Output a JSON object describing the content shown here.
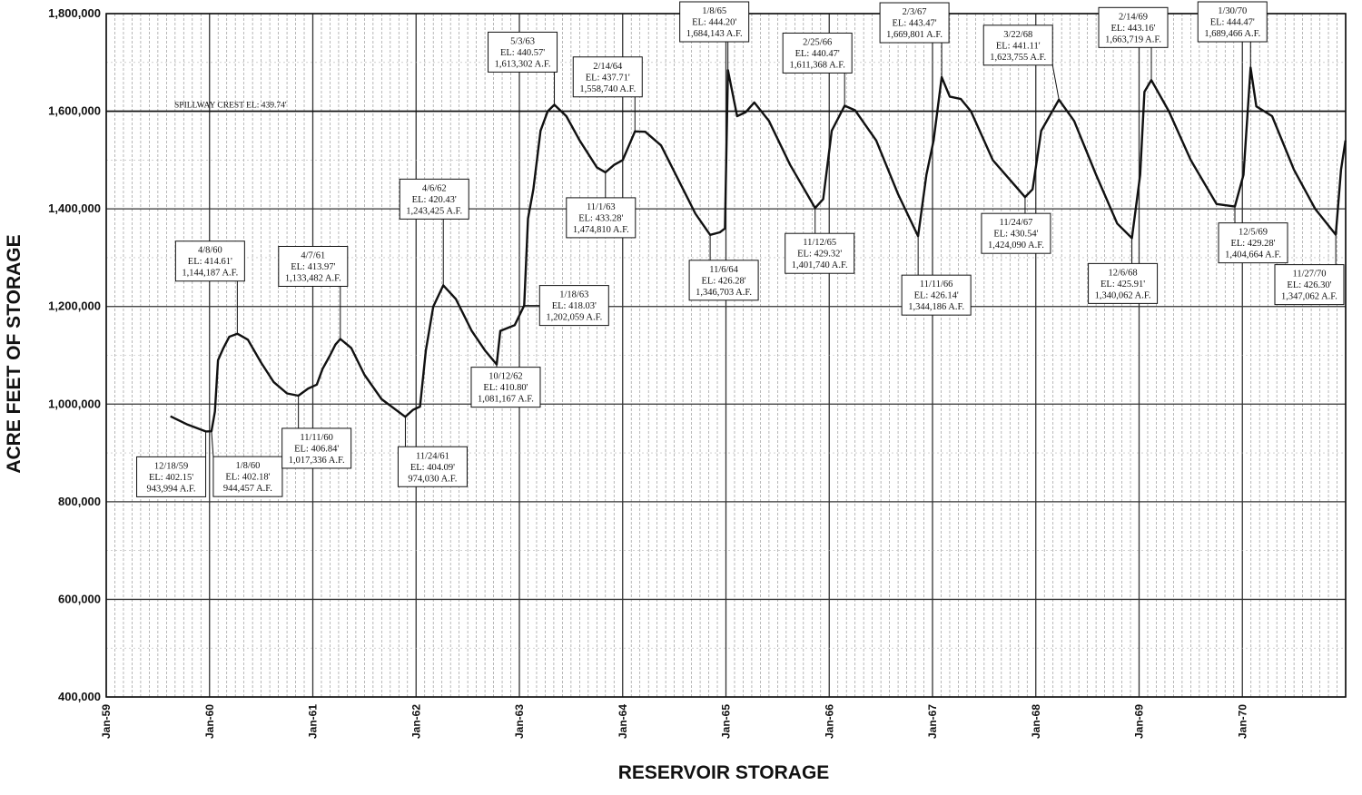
{
  "chart_data": {
    "type": "line",
    "xlabel": "RESERVOIR STORAGE",
    "ylabel": "ACRE FEET OF STORAGE",
    "ylim": [
      400000,
      1800000
    ],
    "yticks": [
      "400,000",
      "600,000",
      "800,000",
      "1,000,000",
      "1,200,000",
      "1,400,000",
      "1,600,000",
      "1,800,000"
    ],
    "xlim": [
      "1959-01",
      "1970-12"
    ],
    "xticks": [
      "Jan-59",
      "Jan-60",
      "Jan-61",
      "Jan-62",
      "Jan-63",
      "Jan-64",
      "Jan-65",
      "Jan-66",
      "Jan-67",
      "Jan-68",
      "Jan-69",
      "Jan-70"
    ],
    "grid": true,
    "reference_line": {
      "label": "SPILLWAY CREST EL: 439.74'",
      "value": 1600000
    },
    "series": [
      {
        "points": [
          [
            "1959-08-15",
            975000
          ],
          [
            "1959-10-15",
            958000
          ],
          [
            "1959-12-18",
            943994
          ],
          [
            "1960-01-08",
            944457
          ],
          [
            "1960-01-20",
            985000
          ],
          [
            "1960-01-31",
            1090000
          ],
          [
            "1960-02-20",
            1115000
          ],
          [
            "1960-03-10",
            1138000
          ],
          [
            "1960-04-08",
            1144187
          ],
          [
            "1960-05-15",
            1132000
          ],
          [
            "1960-07-01",
            1085000
          ],
          [
            "1960-08-15",
            1045000
          ],
          [
            "1960-10-01",
            1022000
          ],
          [
            "1960-11-11",
            1017336
          ],
          [
            "1960-12-15",
            1032000
          ],
          [
            "1961-01-15",
            1040000
          ],
          [
            "1961-02-05",
            1072000
          ],
          [
            "1961-03-01",
            1100000
          ],
          [
            "1961-03-20",
            1122000
          ],
          [
            "1961-04-07",
            1133482
          ],
          [
            "1961-05-15",
            1115000
          ],
          [
            "1961-07-01",
            1060000
          ],
          [
            "1961-09-01",
            1010000
          ],
          [
            "1961-11-24",
            974030
          ],
          [
            "1961-12-20",
            988000
          ],
          [
            "1962-01-15",
            995000
          ],
          [
            "1962-02-05",
            1110000
          ],
          [
            "1962-03-01",
            1200000
          ],
          [
            "1962-04-06",
            1243425
          ],
          [
            "1962-05-20",
            1215000
          ],
          [
            "1962-07-15",
            1150000
          ],
          [
            "1962-09-01",
            1110000
          ],
          [
            "1962-10-12",
            1081167
          ],
          [
            "1962-10-25",
            1150000
          ],
          [
            "1962-12-15",
            1162000
          ],
          [
            "1963-01-18",
            1202059
          ],
          [
            "1963-02-01",
            1380000
          ],
          [
            "1963-02-20",
            1440000
          ],
          [
            "1963-03-15",
            1560000
          ],
          [
            "1963-04-10",
            1600000
          ],
          [
            "1963-05-03",
            1613302
          ],
          [
            "1963-06-15",
            1590000
          ],
          [
            "1963-08-01",
            1540000
          ],
          [
            "1963-10-01",
            1485000
          ],
          [
            "1963-11-01",
            1474810
          ],
          [
            "1963-12-01",
            1490000
          ],
          [
            "1964-01-01",
            1500000
          ],
          [
            "1964-02-14",
            1558740
          ],
          [
            "1964-03-20",
            1558000
          ],
          [
            "1964-05-15",
            1530000
          ],
          [
            "1964-07-15",
            1460000
          ],
          [
            "1964-09-15",
            1390000
          ],
          [
            "1964-11-06",
            1346703
          ],
          [
            "1964-12-10",
            1352000
          ],
          [
            "1964-12-28",
            1360000
          ],
          [
            "1965-01-08",
            1684143
          ],
          [
            "1965-02-10",
            1590000
          ],
          [
            "1965-03-10",
            1598000
          ],
          [
            "1965-04-10",
            1618000
          ],
          [
            "1965-06-01",
            1580000
          ],
          [
            "1965-08-15",
            1490000
          ],
          [
            "1965-11-12",
            1401740
          ],
          [
            "1965-12-10",
            1420000
          ],
          [
            "1966-01-10",
            1560000
          ],
          [
            "1966-02-25",
            1611368
          ],
          [
            "1966-04-01",
            1602000
          ],
          [
            "1966-06-15",
            1540000
          ],
          [
            "1966-09-01",
            1430000
          ],
          [
            "1966-11-11",
            1344186
          ],
          [
            "1966-12-10",
            1470000
          ],
          [
            "1967-01-05",
            1540000
          ],
          [
            "1967-02-03",
            1669801
          ],
          [
            "1967-03-01",
            1630000
          ],
          [
            "1967-04-10",
            1625000
          ],
          [
            "1967-05-15",
            1600000
          ],
          [
            "1967-08-01",
            1500000
          ],
          [
            "1967-11-24",
            1424090
          ],
          [
            "1967-12-20",
            1440000
          ],
          [
            "1968-01-20",
            1560000
          ],
          [
            "1968-03-22",
            1623755
          ],
          [
            "1968-05-15",
            1580000
          ],
          [
            "1968-08-01",
            1470000
          ],
          [
            "1968-10-15",
            1370000
          ],
          [
            "1968-12-06",
            1340062
          ],
          [
            "1969-01-05",
            1470000
          ],
          [
            "1969-01-20",
            1640000
          ],
          [
            "1969-02-14",
            1663719
          ],
          [
            "1969-04-15",
            1600000
          ],
          [
            "1969-07-01",
            1500000
          ],
          [
            "1969-10-01",
            1410000
          ],
          [
            "1969-12-05",
            1404664
          ],
          [
            "1970-01-05",
            1470000
          ],
          [
            "1970-01-30",
            1689466
          ],
          [
            "1970-02-20",
            1610000
          ],
          [
            "1970-04-15",
            1590000
          ],
          [
            "1970-07-01",
            1480000
          ],
          [
            "1970-09-15",
            1400000
          ],
          [
            "1970-11-27",
            1347062
          ],
          [
            "1970-12-15",
            1480000
          ],
          [
            "1970-12-31",
            1540000
          ]
        ]
      }
    ],
    "annotations": [
      {
        "lines": [
          "12/18/59",
          "EL: 402.15'",
          "943,994 A.F."
        ],
        "date": "1959-12-18",
        "value": 943994
      },
      {
        "lines": [
          "1/8/60",
          "EL: 402.18'",
          "944,457 A.F."
        ],
        "date": "1960-01-08",
        "value": 944457
      },
      {
        "lines": [
          "4/8/60",
          "EL: 414.61'",
          "1,144,187 A.F."
        ],
        "date": "1960-04-08",
        "value": 1144187
      },
      {
        "lines": [
          "11/11/60",
          "EL: 406.84'",
          "1,017,336 A.F."
        ],
        "date": "1960-11-11",
        "value": 1017336
      },
      {
        "lines": [
          "4/7/61",
          "EL: 413.97'",
          "1,133,482 A.F."
        ],
        "date": "1961-04-07",
        "value": 1133482
      },
      {
        "lines": [
          "11/24/61",
          "EL: 404.09'",
          "974,030 A.F."
        ],
        "date": "1961-11-24",
        "value": 974030
      },
      {
        "lines": [
          "4/6/62",
          "EL: 420.43'",
          "1,243,425 A.F."
        ],
        "date": "1962-04-06",
        "value": 1243425
      },
      {
        "lines": [
          "10/12/62",
          "EL: 410.80'",
          "1,081,167 A.F."
        ],
        "date": "1962-10-12",
        "value": 1081167
      },
      {
        "lines": [
          "1/18/63",
          "EL: 418.03'",
          "1,202,059 A.F."
        ],
        "date": "1963-01-18",
        "value": 1202059
      },
      {
        "lines": [
          "5/3/63",
          "EL: 440.57'",
          "1,613,302 A.F."
        ],
        "date": "1963-05-03",
        "value": 1613302
      },
      {
        "lines": [
          "11/1/63",
          "EL: 433.28'",
          "1,474,810 A.F."
        ],
        "date": "1963-11-01",
        "value": 1474810
      },
      {
        "lines": [
          "2/14/64",
          "EL: 437.71'",
          "1,558,740 A.F."
        ],
        "date": "1964-02-14",
        "value": 1558740
      },
      {
        "lines": [
          "11/6/64",
          "EL: 426.28'",
          "1,346,703 A.F."
        ],
        "date": "1964-11-06",
        "value": 1346703
      },
      {
        "lines": [
          "1/8/65",
          "EL: 444.20'",
          "1,684,143 A.F."
        ],
        "date": "1965-01-08",
        "value": 1684143
      },
      {
        "lines": [
          "11/12/65",
          "EL: 429.32'",
          "1,401,740 A.F."
        ],
        "date": "1965-11-12",
        "value": 1401740
      },
      {
        "lines": [
          "2/25/66",
          "EL: 440.47'",
          "1,611,368 A.F."
        ],
        "date": "1966-02-25",
        "value": 1611368
      },
      {
        "lines": [
          "11/11/66",
          "EL: 426.14'",
          "1,344,186 A.F."
        ],
        "date": "1966-11-11",
        "value": 1344186
      },
      {
        "lines": [
          "2/3/67",
          "EL: 443.47'",
          "1,669,801 A.F."
        ],
        "date": "1967-02-03",
        "value": 1669801
      },
      {
        "lines": [
          "11/24/67",
          "EL: 430.54'",
          "1,424,090 A.F."
        ],
        "date": "1967-11-24",
        "value": 1424090
      },
      {
        "lines": [
          "3/22/68",
          "EL: 441.11'",
          "1,623,755 A.F."
        ],
        "date": "1968-03-22",
        "value": 1623755
      },
      {
        "lines": [
          "12/6/68",
          "EL: 425.91'",
          "1,340,062 A.F."
        ],
        "date": "1968-12-06",
        "value": 1340062
      },
      {
        "lines": [
          "2/14/69",
          "EL: 443.16'",
          "1,663,719 A.F."
        ],
        "date": "1969-02-14",
        "value": 1663719
      },
      {
        "lines": [
          "12/5/69",
          "EL: 429.28'",
          "1,404,664 A.F."
        ],
        "date": "1969-12-05",
        "value": 1404664
      },
      {
        "lines": [
          "1/30/70",
          "EL: 444.47'",
          "1,689,466 A.F."
        ],
        "date": "1970-01-30",
        "value": 1689466
      },
      {
        "lines": [
          "11/27/70",
          "EL: 426.30'",
          "1,347,062 A.F."
        ],
        "date": "1970-11-27",
        "value": 1347062
      }
    ]
  }
}
